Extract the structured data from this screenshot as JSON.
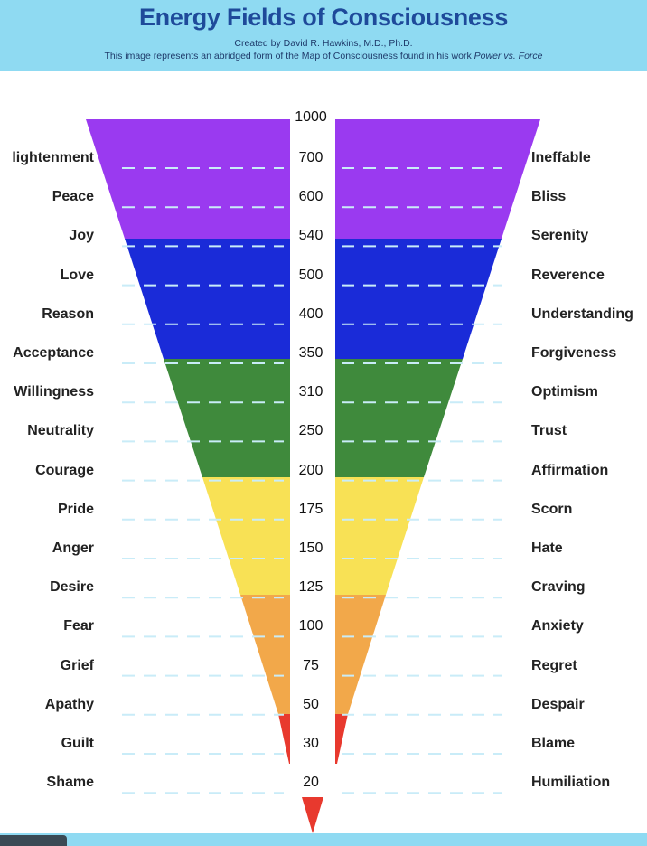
{
  "header": {
    "title": "Energy Fields of Consciousness",
    "subtitle": "Created by David R. Hawkins, M.D., Ph.D.",
    "note_prefix": "This image represents an abridged form of the Map of Consciousness found in his work ",
    "note_work": "Power vs. Force"
  },
  "colors": {
    "header_bg": "#8fdaf2",
    "purple": "#9a3af0",
    "blue": "#1a2bd8",
    "green": "#3f8a3c",
    "yellow": "#f8e155",
    "orange": "#f2a84a",
    "red": "#e8392e",
    "dash": "#c9ecf8"
  },
  "top_value": "1000",
  "levels": [
    {
      "left": "lightenment",
      "value": "700",
      "right": "Ineffable"
    },
    {
      "left": "Peace",
      "value": "600",
      "right": "Bliss"
    },
    {
      "left": "Joy",
      "value": "540",
      "right": "Serenity"
    },
    {
      "left": "Love",
      "value": "500",
      "right": "Reverence"
    },
    {
      "left": "Reason",
      "value": "400",
      "right": "Understanding"
    },
    {
      "left": "Acceptance",
      "value": "350",
      "right": "Forgiveness"
    },
    {
      "left": "Willingness",
      "value": "310",
      "right": "Optimism"
    },
    {
      "left": "Neutrality",
      "value": "250",
      "right": "Trust"
    },
    {
      "left": "Courage",
      "value": "200",
      "right": "Affirmation"
    },
    {
      "left": "Pride",
      "value": "175",
      "right": "Scorn"
    },
    {
      "left": "Anger",
      "value": "150",
      "right": "Hate"
    },
    {
      "left": "Desire",
      "value": "125",
      "right": "Craving"
    },
    {
      "left": "Fear",
      "value": "100",
      "right": "Anxiety"
    },
    {
      "left": "Grief",
      "value": "75",
      "right": "Regret"
    },
    {
      "left": "Apathy",
      "value": "50",
      "right": "Despair"
    },
    {
      "left": "Guilt",
      "value": "30",
      "right": "Blame"
    },
    {
      "left": "Shame",
      "value": "20",
      "right": "Humiliation"
    }
  ]
}
